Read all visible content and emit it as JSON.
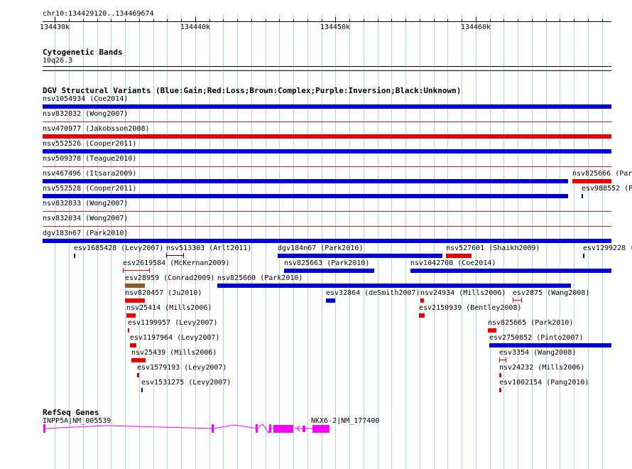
{
  "viewer": {
    "region": "chr10:134429120..134469674",
    "start": 134429120,
    "end": 134469674
  },
  "ruler": {
    "major_ticks": [
      134430000,
      134440000,
      134450000,
      134460000
    ],
    "labels": [
      "134430k",
      "134440k",
      "134450k",
      "134460k"
    ],
    "minor_step": 1000
  },
  "cytoband": {
    "title": "Cytogenetic Bands",
    "band_label": "10q26.3"
  },
  "dgv": {
    "title": "DGV Structural Variants (Blue:Gain;Red:Loss;Brown:Complex;Purple:Inversion;Black:Unknown)",
    "colors": {
      "gain": "#0000dd",
      "loss": "#ee0000",
      "complex": "#8b5a2b",
      "line_gain": "#0000dd",
      "line_loss": "#cc2222"
    },
    "full_rows": [
      {
        "label": "nsv1054934 (Coe2014)",
        "type": "gain"
      },
      {
        "label": "nsv832032 (Wong2007)",
        "type": "loss"
      },
      {
        "label": "nsv470977 (Jakobsson2008)",
        "type": "loss"
      },
      {
        "label": "nsv552526 (Cooper2011)",
        "type": "gain"
      },
      {
        "label": "nsv509378 (Teague2010)",
        "type": "loss"
      },
      {
        "label": "nsv467496 (Itsara2009)",
        "type": "gain"
      },
      {
        "label": "nsv552528 (Cooper2011)",
        "type": "gain"
      },
      {
        "label": "nsv832033 (Wong2007)",
        "type": "loss"
      },
      {
        "label": "nsv832034 (Wong2007)",
        "type": "loss"
      },
      {
        "label": "dgv183n67 (Park2010)",
        "type": "gain"
      }
    ],
    "extra_labels": [
      {
        "text": "nsv825666 (Par"
      },
      {
        "text": "esv988552 (P"
      }
    ],
    "packed": [
      {
        "label": "esv1685428 (Levy2007)"
      },
      {
        "label": "nsv513303 (Arlt2011)"
      },
      {
        "label": "dgv184n67 (Park2010)"
      },
      {
        "label": "nsv527601 (Shaikh2009)"
      },
      {
        "label": "esv1299228 ("
      },
      {
        "label": "esv2619584 (McKernan2009)"
      },
      {
        "label": "nsv825663 (Park2010)"
      },
      {
        "label": "nsv1042708 (Coe2014)"
      },
      {
        "label": "esv28959 (Conrad2009)"
      },
      {
        "label": "nsv825660 (Park2010)"
      },
      {
        "label": "nsv820457 (Ju2010)"
      },
      {
        "label": "esv32864 (deSmith2007)"
      },
      {
        "label": "nsv24934 (Mills2006)"
      },
      {
        "label": "esv2875 (Wang2008)"
      },
      {
        "label": "nsv25414 (Mills2006)"
      },
      {
        "label": "esv2150939 (Bentley2008)"
      },
      {
        "label": "esv1199957 (Levy2007)"
      },
      {
        "label": "nsv825665 (Park2010)"
      },
      {
        "label": "esv1197964 (Levy2007)"
      },
      {
        "label": "esv2750852 (Pinto2007)"
      },
      {
        "label": "nsv25439 (Mills2006)"
      },
      {
        "label": "esv3354 (Wang2008)"
      },
      {
        "label": "esv1579193 (Levy2007)"
      },
      {
        "label": "nsv24232 (Mills2006)"
      },
      {
        "label": "esv1531275 (Levy2007)"
      },
      {
        "label": "esv1002154 (Pang2010)"
      }
    ]
  },
  "refseq": {
    "title": "RefSeq Genes",
    "color": "#ff00ff",
    "genes": [
      {
        "label": "INPP5A|NM_005539"
      },
      {
        "label": "NKX6-2|NM_177400"
      }
    ]
  }
}
